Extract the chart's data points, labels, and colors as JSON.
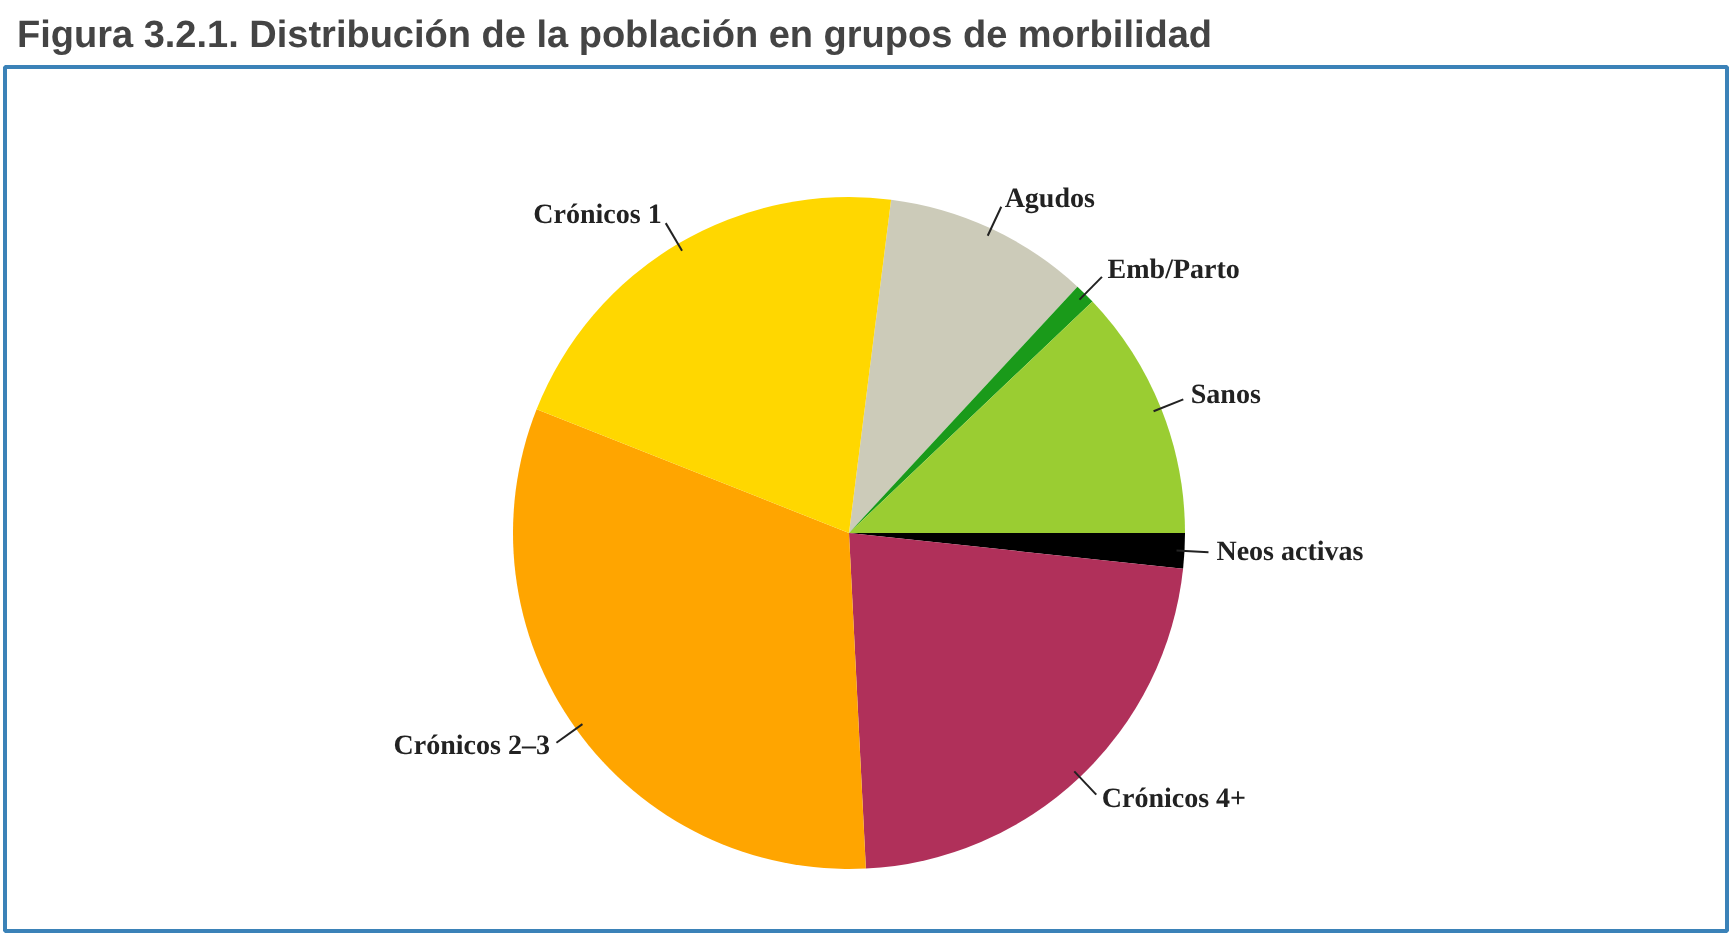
{
  "chart_data": {
    "type": "pie",
    "title": "Figura 3.2.1. Distribución de la población en grupos de morbilidad",
    "categories": [
      "Agudos",
      "Emb/Parto",
      "Sanos",
      "Neos activas",
      "Crónicos 4+",
      "Crónicos 2–3",
      "Crónicos 1"
    ],
    "values": [
      9.9,
      1.0,
      12.1,
      1.7,
      22.5,
      31.8,
      21.0
    ],
    "colors": [
      "#cccbb9",
      "#1a9a1a",
      "#9acd32",
      "#000000",
      "#b0305a",
      "#ffa500",
      "#ffd700"
    ]
  }
}
